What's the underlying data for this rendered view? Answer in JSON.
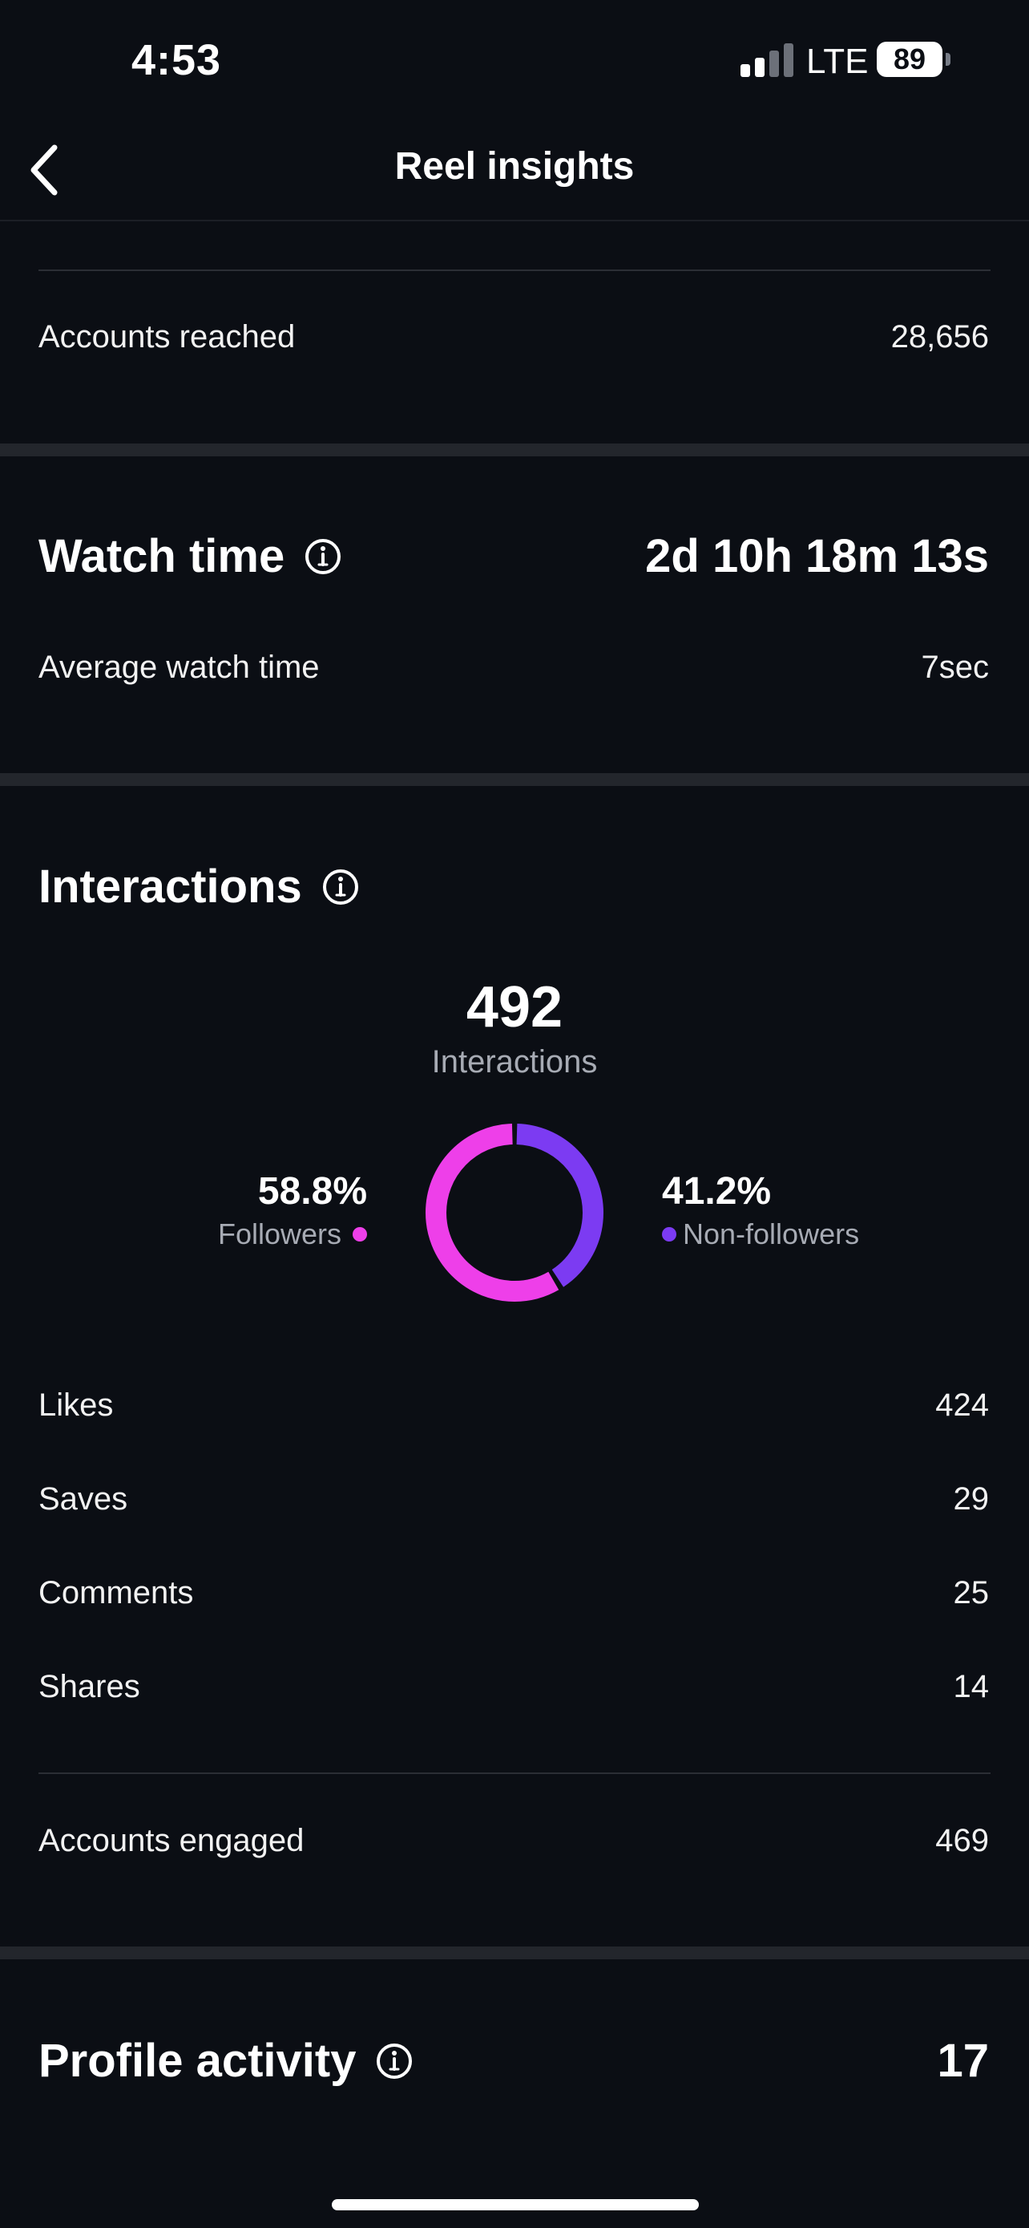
{
  "status_bar": {
    "time": "4:53",
    "network": "LTE",
    "battery": "89"
  },
  "nav": {
    "title": "Reel insights",
    "back_icon": "chevron-left-icon"
  },
  "reach": {
    "label": "Accounts reached",
    "value": "28,656"
  },
  "watch_time": {
    "title": "Watch time",
    "value": "2d 10h 18m 13s",
    "average_label": "Average watch time",
    "average_value": "7sec"
  },
  "interactions": {
    "title": "Interactions",
    "total": "492",
    "total_caption": "Interactions",
    "followers_pct": "58.8%",
    "followers_label": "Followers",
    "non_followers_pct": "41.2%",
    "non_followers_label": "Non-followers",
    "rows": [
      {
        "label": "Likes",
        "value": "424"
      },
      {
        "label": "Saves",
        "value": "29"
      },
      {
        "label": "Comments",
        "value": "25"
      },
      {
        "label": "Shares",
        "value": "14"
      }
    ],
    "engaged_label": "Accounts engaged",
    "engaged_value": "469"
  },
  "profile_activity": {
    "title": "Profile activity",
    "value": "17"
  },
  "donut": {
    "followers_fraction": 0.588,
    "non_followers_fraction": 0.412
  },
  "colors": {
    "background": "#0b0e14",
    "followers": "#ee3fe9",
    "non_followers": "#7c3bf2",
    "secondary_text": "#a7abb4"
  }
}
